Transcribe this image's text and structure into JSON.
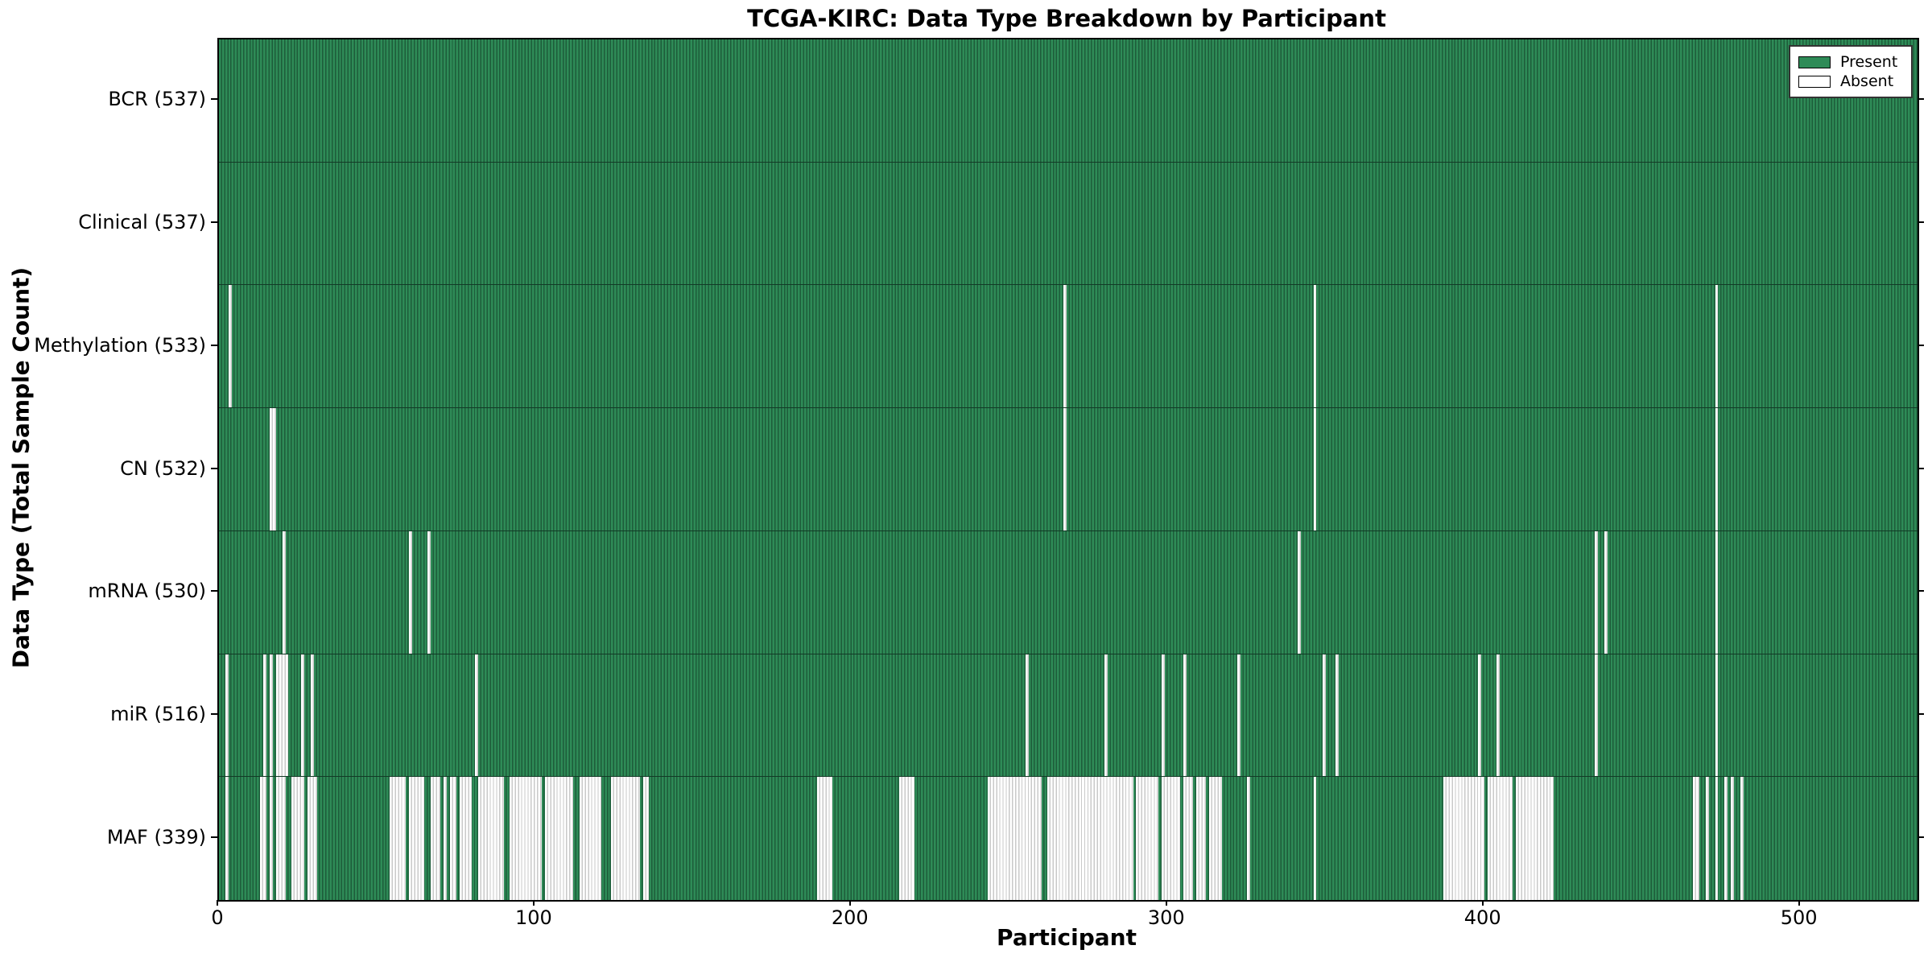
{
  "chart_data": {
    "type": "heatmap",
    "title": "TCGA-KIRC: Data Type Breakdown by Participant",
    "xlabel": "Participant",
    "ylabel": "Data Type (Total Sample Count)",
    "x_ticks": [
      0,
      100,
      200,
      300,
      400,
      500
    ],
    "x_range": [
      0,
      537
    ],
    "n_participants": 537,
    "grid": false,
    "legend_position": "upper right",
    "colors": {
      "present": "#2e8b57",
      "present_edge": "#1d5c3a",
      "absent": "#ffffff",
      "absent_edge": "#c9c9c9",
      "spine": "#000000"
    },
    "legend": {
      "entries": [
        {
          "label": "Present",
          "color": "#2e8b57"
        },
        {
          "label": "Absent",
          "color": "#ffffff"
        }
      ]
    },
    "rows": [
      {
        "label": "BCR (537)",
        "name": "BCR",
        "present_count": 537,
        "absent_ranges": []
      },
      {
        "label": "Clinical (537)",
        "name": "Clinical",
        "present_count": 537,
        "absent_ranges": []
      },
      {
        "label": "Methylation (533)",
        "name": "Methylation",
        "present_count": 533,
        "absent_ranges": [
          [
            3,
            3
          ],
          [
            267,
            267
          ],
          [
            346,
            346
          ],
          [
            473,
            473
          ]
        ]
      },
      {
        "label": "CN (532)",
        "name": "CN",
        "present_count": 532,
        "absent_ranges": [
          [
            16,
            17
          ],
          [
            267,
            267
          ],
          [
            346,
            346
          ],
          [
            473,
            473
          ]
        ]
      },
      {
        "label": "mRNA (530)",
        "name": "mRNA",
        "present_count": 530,
        "absent_ranges": [
          [
            20,
            20
          ],
          [
            60,
            60
          ],
          [
            66,
            66
          ],
          [
            341,
            341
          ],
          [
            435,
            435
          ],
          [
            438,
            438
          ],
          [
            473,
            473
          ]
        ]
      },
      {
        "label": "miR (516)",
        "name": "miR",
        "present_count": 516,
        "absent_ranges": [
          [
            2,
            2
          ],
          [
            14,
            14
          ],
          [
            16,
            16
          ],
          [
            18,
            21
          ],
          [
            26,
            26
          ],
          [
            29,
            29
          ],
          [
            81,
            81
          ],
          [
            255,
            255
          ],
          [
            280,
            280
          ],
          [
            298,
            298
          ],
          [
            305,
            305
          ],
          [
            322,
            322
          ],
          [
            349,
            349
          ],
          [
            353,
            353
          ],
          [
            398,
            398
          ],
          [
            404,
            404
          ],
          [
            435,
            435
          ],
          [
            473,
            473
          ]
        ]
      },
      {
        "label": "MAF (339)",
        "name": "MAF",
        "present_count": 339,
        "absent_ranges": [
          [
            2,
            2
          ],
          [
            13,
            14
          ],
          [
            16,
            16
          ],
          [
            18,
            20
          ],
          [
            23,
            26
          ],
          [
            28,
            30
          ],
          [
            54,
            58
          ],
          [
            60,
            64
          ],
          [
            67,
            69
          ],
          [
            71,
            71
          ],
          [
            73,
            74
          ],
          [
            76,
            79
          ],
          [
            82,
            89
          ],
          [
            92,
            101
          ],
          [
            103,
            111
          ],
          [
            114,
            120
          ],
          [
            124,
            132
          ],
          [
            134,
            135
          ],
          [
            189,
            193
          ],
          [
            215,
            219
          ],
          [
            243,
            259
          ],
          [
            262,
            288
          ],
          [
            290,
            296
          ],
          [
            298,
            303
          ],
          [
            305,
            307
          ],
          [
            309,
            311
          ],
          [
            313,
            316
          ],
          [
            325,
            325
          ],
          [
            346,
            346
          ],
          [
            387,
            399
          ],
          [
            401,
            408
          ],
          [
            410,
            421
          ],
          [
            466,
            467
          ],
          [
            470,
            470
          ],
          [
            473,
            473
          ],
          [
            476,
            476
          ],
          [
            478,
            478
          ],
          [
            481,
            481
          ]
        ]
      }
    ]
  }
}
